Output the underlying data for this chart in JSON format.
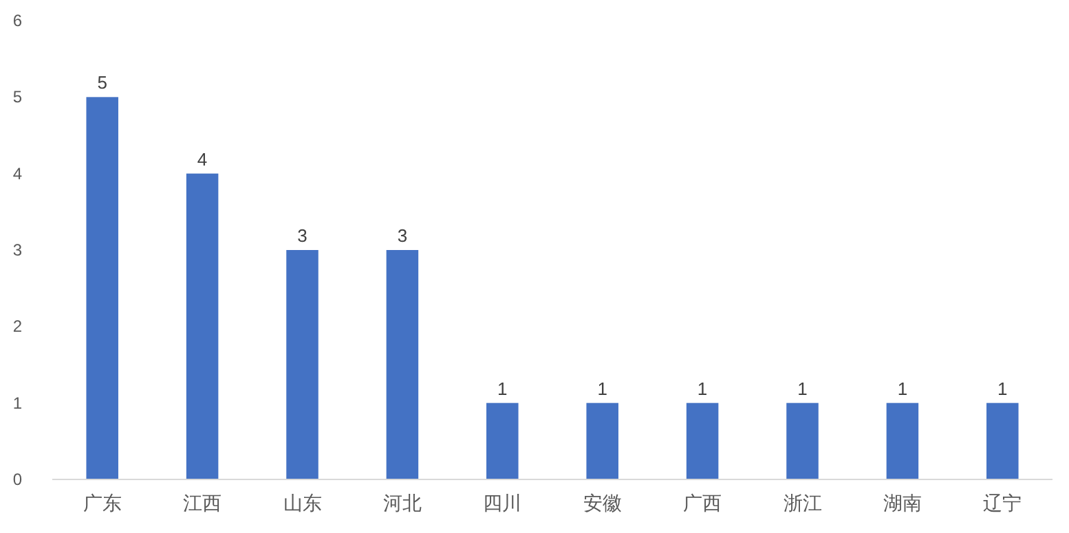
{
  "chart_data": {
    "type": "bar",
    "categories": [
      "广东",
      "江西",
      "山东",
      "河北",
      "四川",
      "安徽",
      "广西",
      "浙江",
      "湖南",
      "辽宁"
    ],
    "values": [
      5,
      4,
      3,
      3,
      1,
      1,
      1,
      1,
      1,
      1
    ],
    "color": "#4472c4",
    "ylim": [
      0,
      6
    ],
    "yticks": [
      0,
      1,
      2,
      3,
      4,
      5,
      6
    ],
    "data_labels": true
  }
}
